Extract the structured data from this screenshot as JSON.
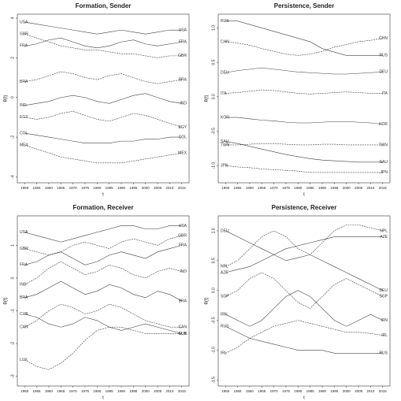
{
  "chart_data": [
    {
      "type": "line",
      "title": "Formation, Sender",
      "x_label": "t",
      "y_label": "θ(t)",
      "x": [
        1950,
        1955,
        1960,
        1965,
        1970,
        1975,
        1980,
        1985,
        1990,
        1995,
        2000,
        2005,
        2010,
        2015
      ],
      "xlim": [
        1947,
        2018
      ],
      "xticks": [
        1950,
        1955,
        1960,
        1965,
        1970,
        1975,
        1980,
        1985,
        1990,
        1995,
        2000,
        2005,
        2010,
        2015
      ],
      "ylim": [
        -4.3,
        4.2
      ],
      "yticks": [
        -4,
        -2,
        0,
        2,
        4
      ],
      "series": [
        {
          "name": "USA",
          "color": "#000000",
          "values": [
            3.8,
            3.7,
            3.6,
            3.5,
            3.4,
            3.3,
            3.2,
            3.3,
            3.4,
            3.3,
            3.2,
            3.3,
            3.4,
            3.4
          ]
        },
        {
          "name": "GBR",
          "color": "#000000",
          "values": [
            3.2,
            3.0,
            2.8,
            2.6,
            2.5,
            2.4,
            2.4,
            2.3,
            2.2,
            2.2,
            2.1,
            2.0,
            2.1,
            2.1
          ]
        },
        {
          "name": "FRA",
          "color": "#000000",
          "values": [
            2.6,
            2.7,
            2.9,
            3.0,
            2.8,
            2.6,
            2.5,
            2.6,
            2.8,
            2.9,
            2.7,
            2.6,
            2.7,
            2.8
          ]
        },
        {
          "name": "BRA",
          "color": "#000000",
          "values": [
            0.8,
            0.9,
            1.1,
            1.3,
            1.2,
            1.0,
            0.9,
            1.1,
            1.2,
            1.0,
            0.8,
            0.7,
            0.8,
            0.9
          ]
        },
        {
          "name": "IND",
          "color": "#000000",
          "values": [
            -0.4,
            -0.3,
            -0.2,
            0,
            0.1,
            0,
            -0.2,
            -0.3,
            -0.1,
            0.1,
            0.2,
            0,
            -0.2,
            -0.3
          ]
        },
        {
          "name": "EGY",
          "color": "#000000",
          "values": [
            -1.0,
            -1.1,
            -1.0,
            -0.8,
            -0.7,
            -0.9,
            -1.1,
            -1.2,
            -1.0,
            -0.8,
            -0.9,
            -1.1,
            -1.3,
            -1.5
          ]
        },
        {
          "name": "COL",
          "color": "#000000",
          "values": [
            -1.8,
            -1.9,
            -2.0,
            -2.1,
            -2.2,
            -2.3,
            -2.3,
            -2.3,
            -2.2,
            -2.2,
            -2.1,
            -2.1,
            -2.0,
            -2.0
          ]
        },
        {
          "name": "MEX",
          "color": "#000000",
          "values": [
            -2.4,
            -2.6,
            -2.8,
            -3.0,
            -3.1,
            -3.2,
            -3.3,
            -3.3,
            -3.3,
            -3.2,
            -3.1,
            -3.0,
            -2.9,
            -2.8
          ]
        }
      ]
    },
    {
      "type": "line",
      "title": "Persistence, Sender",
      "x_label": "t",
      "y_label": "θ(t)",
      "x": [
        1950,
        1955,
        1960,
        1965,
        1970,
        1975,
        1980,
        1985,
        1990,
        1995,
        2000,
        2005,
        2010,
        2015
      ],
      "xlim": [
        1947,
        2018
      ],
      "xticks": [
        1950,
        1955,
        1960,
        1965,
        1970,
        1975,
        1980,
        1985,
        1990,
        1995,
        2000,
        2005,
        2010,
        2015
      ],
      "ylim": [
        -1.25,
        1.2
      ],
      "yticks": [
        {
          "value": -1,
          "label": "-1.0"
        },
        -0.5,
        {
          "value": 0,
          "label": "0.0"
        },
        0.5,
        {
          "value": 1,
          "label": "1.0"
        }
      ],
      "series": [
        {
          "name": "RUS",
          "color": "#000000",
          "values": [
            1.1,
            1.1,
            1.05,
            1.0,
            0.95,
            0.9,
            0.85,
            0.8,
            0.7,
            0.65,
            0.6,
            0.6,
            0.6,
            0.6
          ]
        },
        {
          "name": "CHN",
          "color": "#000000",
          "values": [
            0.8,
            0.78,
            0.75,
            0.7,
            0.66,
            0.62,
            0.6,
            0.62,
            0.66,
            0.72,
            0.76,
            0.8,
            0.82,
            0.85
          ]
        },
        {
          "name": "DEU",
          "color": "#000000",
          "values": [
            0.35,
            0.38,
            0.4,
            0.42,
            0.4,
            0.38,
            0.36,
            0.35,
            0.34,
            0.33,
            0.33,
            0.34,
            0.35,
            0.36
          ]
        },
        {
          "name": "ITA",
          "color": "#000000",
          "values": [
            0.05,
            0.06,
            0.08,
            0.1,
            0.09,
            0.07,
            0.05,
            0.04,
            0.05,
            0.06,
            0.07,
            0.06,
            0.05,
            0.05
          ]
        },
        {
          "name": "KOR",
          "color": "#000000",
          "values": [
            -0.3,
            -0.3,
            -0.32,
            -0.34,
            -0.35,
            -0.37,
            -0.38,
            -0.38,
            -0.37,
            -0.36,
            -0.36,
            -0.37,
            -0.38,
            -0.4
          ]
        },
        {
          "name": "TWN",
          "color": "#000000",
          "values": [
            -0.7,
            -0.7,
            -0.69,
            -0.68,
            -0.68,
            -0.69,
            -0.7,
            -0.7,
            -0.69,
            -0.69,
            -0.7,
            -0.7,
            -0.7,
            -0.7
          ]
        },
        {
          "name": "SAU",
          "color": "#000000",
          "values": [
            -0.65,
            -0.68,
            -0.72,
            -0.76,
            -0.8,
            -0.84,
            -0.87,
            -0.9,
            -0.92,
            -0.93,
            -0.94,
            -0.95,
            -0.95,
            -0.95
          ]
        },
        {
          "name": "JPN",
          "color": "#000000",
          "values": [
            -1.0,
            -1.02,
            -1.03,
            -1.05,
            -1.06,
            -1.07,
            -1.08,
            -1.1,
            -1.1,
            -1.1,
            -1.1,
            -1.1,
            -1.1,
            -1.1
          ]
        }
      ]
    },
    {
      "type": "line",
      "title": "Formation, Receiver",
      "x_label": "t",
      "y_label": "θ(t)",
      "x": [
        1950,
        1955,
        1960,
        1965,
        1970,
        1975,
        1980,
        1985,
        1990,
        1995,
        2000,
        2005,
        2010,
        2015
      ],
      "xlim": [
        1947,
        2018
      ],
      "xticks": [
        1950,
        1955,
        1960,
        1965,
        1970,
        1975,
        1980,
        1985,
        1990,
        1995,
        2000,
        2005,
        2010,
        2015
      ],
      "ylim": [
        -3.3,
        1.9
      ],
      "yticks": [
        -3,
        -2,
        -1,
        0,
        1
      ],
      "series": [
        {
          "name": "USA",
          "color": "#000000",
          "values": [
            1.4,
            1.3,
            1.2,
            1.1,
            1.2,
            1.3,
            1.4,
            1.5,
            1.6,
            1.6,
            1.5,
            1.5,
            1.6,
            1.6
          ]
        },
        {
          "name": "GBR",
          "color": "#000000",
          "values": [
            0.9,
            0.8,
            0.7,
            0.8,
            1.0,
            1.1,
            1.0,
            0.9,
            1.1,
            1.2,
            1.1,
            1.0,
            1.2,
            1.3
          ]
        },
        {
          "name": "FRA",
          "color": "#000000",
          "values": [
            0.4,
            0.5,
            0.7,
            0.8,
            0.6,
            0.4,
            0.5,
            0.7,
            0.8,
            0.7,
            0.6,
            0.8,
            0.9,
            1.0
          ]
        },
        {
          "name": "IND",
          "color": "#000000",
          "values": [
            -0.2,
            0,
            0.3,
            0.5,
            0.3,
            0.1,
            0.2,
            0.4,
            0.3,
            0.1,
            0,
            0.2,
            0.3,
            0.2
          ]
        },
        {
          "name": "BRA",
          "color": "#000000",
          "values": [
            -0.6,
            -0.5,
            -0.3,
            -0.1,
            -0.3,
            -0.5,
            -0.4,
            -0.2,
            -0.3,
            -0.5,
            -0.6,
            -0.4,
            -0.5,
            -0.7
          ]
        },
        {
          "name": "CAN",
          "color": "#000000",
          "values": [
            -1.5,
            -1.3,
            -1.0,
            -0.8,
            -0.9,
            -1.1,
            -1.0,
            -0.8,
            -0.9,
            -1.1,
            -1.3,
            -1.4,
            -1.5,
            -1.5
          ]
        },
        {
          "name": "CUB",
          "color": "#000000",
          "values": [
            -1.1,
            -1.2,
            -1.4,
            -1.5,
            -1.4,
            -1.2,
            -1.3,
            -1.5,
            -1.6,
            -1.5,
            -1.4,
            -1.5,
            -1.6,
            -1.7
          ]
        },
        {
          "name": "LUX",
          "color": "#000000",
          "values": [
            -2.5,
            -2.7,
            -2.8,
            -2.6,
            -2.3,
            -1.9,
            -1.6,
            -1.5,
            -1.5,
            -1.6,
            -1.7,
            -1.7,
            -1.7,
            -1.7
          ]
        }
      ]
    },
    {
      "type": "line",
      "title": "Persistence, Receiver",
      "x_label": "t",
      "y_label": "θ(t)",
      "x": [
        1950,
        1955,
        1960,
        1965,
        1970,
        1975,
        1980,
        1985,
        1990,
        1995,
        2000,
        2005,
        2010,
        2015
      ],
      "xlim": [
        1947,
        2018
      ],
      "xticks": [
        1950,
        1955,
        1960,
        1965,
        1970,
        1975,
        1980,
        1985,
        1990,
        1995,
        2000,
        2005,
        2010,
        2015
      ],
      "ylim": [
        -1.6,
        1.25
      ],
      "yticks": [
        -1.5,
        {
          "value": -1,
          "label": "-1.0"
        },
        -0.5,
        {
          "value": 0,
          "label": "0.0"
        },
        0.5,
        {
          "value": 1,
          "label": "1.0"
        }
      ],
      "series": [
        {
          "name": "DEU",
          "color": "#000000",
          "values": [
            1.0,
            0.9,
            0.8,
            0.7,
            0.6,
            0.5,
            0.55,
            0.6,
            0.5,
            0.4,
            0.3,
            0.2,
            0.1,
            0.0
          ]
        },
        {
          "name": "NPL",
          "color": "#000000",
          "values": [
            0.4,
            0.5,
            0.7,
            0.9,
            1.0,
            0.9,
            0.7,
            0.6,
            0.8,
            1.0,
            1.1,
            1.1,
            1.05,
            1.0
          ]
        },
        {
          "name": "AZE",
          "color": "#000000",
          "values": [
            0.3,
            0.35,
            0.4,
            0.5,
            0.6,
            0.7,
            0.75,
            0.8,
            0.85,
            0.9,
            0.9,
            0.9,
            0.9,
            0.9
          ]
        },
        {
          "name": "SGP",
          "color": "#000000",
          "values": [
            -0.1,
            0,
            0.2,
            0.3,
            0.2,
            0,
            -0.2,
            -0.3,
            -0.1,
            0.1,
            0.2,
            0.1,
            0,
            -0.1
          ]
        },
        {
          "name": "IRN",
          "color": "#000000",
          "values": [
            -0.4,
            -0.5,
            -0.6,
            -0.5,
            -0.3,
            -0.1,
            0,
            -0.1,
            -0.3,
            -0.5,
            -0.6,
            -0.5,
            -0.4,
            -0.5
          ]
        },
        {
          "name": "IRL",
          "color": "#000000",
          "values": [
            -1.05,
            -0.95,
            -0.8,
            -0.7,
            -0.6,
            -0.55,
            -0.5,
            -0.55,
            -0.6,
            -0.65,
            -0.7,
            -0.7,
            -0.72,
            -0.75
          ]
        },
        {
          "name": "RUS",
          "color": "#000000",
          "values": [
            -0.6,
            -0.7,
            -0.8,
            -0.85,
            -0.9,
            -0.95,
            -1.0,
            -1.0,
            -1.0,
            -1.05,
            -1.05,
            -1.05,
            -1.05,
            -1.05
          ]
        }
      ]
    }
  ]
}
